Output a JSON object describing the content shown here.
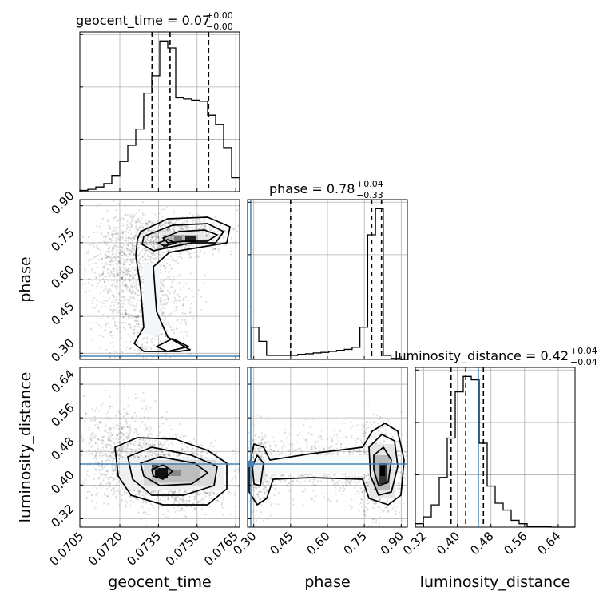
{
  "chart_data": {
    "type": "corner",
    "grid": true,
    "truth_color": "#4682b4",
    "parameters": [
      {
        "name": "geocent_time",
        "label": "geocent_time",
        "title": "geocent_time = 0.07",
        "sup": "+0.00",
        "sub": "−0.00",
        "range": [
          0.07045,
          0.07665
        ],
        "ticks": [
          0.0705,
          0.072,
          0.0735,
          0.075,
          0.0765
        ],
        "tick_labels": [
          "0.0705",
          "0.0720",
          "0.0735",
          "0.0750",
          "0.0765"
        ],
        "quantiles": [
          0.07325,
          0.07395,
          0.07545
        ],
        "truth": null,
        "hist_edges_start": 0.07045,
        "hist_bin": 0.00031,
        "hist_values": [
          1,
          2,
          4,
          7,
          14,
          26,
          40,
          54,
          85,
          100,
          130,
          124,
          81,
          80,
          79,
          78,
          66,
          58,
          38,
          12
        ]
      },
      {
        "name": "phase",
        "label": "phase",
        "title": "phase = 0.78",
        "sup": "+0.04",
        "sub": "−0.33",
        "range": [
          0.275,
          0.925
        ],
        "ticks": [
          0.3,
          0.45,
          0.6,
          0.75,
          0.9
        ],
        "tick_labels": [
          "0.30",
          "0.45",
          "0.60",
          "0.75",
          "0.90"
        ],
        "quantiles": [
          0.45,
          0.78,
          0.82
        ],
        "truth": 0.288,
        "hist_edges_start": 0.289,
        "hist_bin": 0.03165,
        "hist_values": [
          16,
          9,
          2,
          2,
          2,
          2,
          2.5,
          2.8,
          3.2,
          3.5,
          4,
          4.5,
          5,
          6,
          16,
          62,
          75,
          2,
          0.5,
          0
        ]
      },
      {
        "name": "luminosity_distance",
        "label": "luminosity_distance",
        "title": "luminosity_distance = 0.42",
        "sup": "+0.04",
        "sub": "−0.04",
        "range": [
          0.3,
          0.68
        ],
        "ticks": [
          0.32,
          0.4,
          0.48,
          0.56,
          0.64
        ],
        "tick_labels": [
          "0.32",
          "0.40",
          "0.48",
          "0.56",
          "0.64"
        ],
        "quantiles": [
          0.385,
          0.42,
          0.462
        ],
        "truth": 0.45,
        "hist_edges_start": 0.3,
        "hist_bin": 0.019,
        "hist_values": [
          2,
          6,
          13,
          29,
          52,
          79,
          88,
          86,
          49,
          24,
          14,
          10,
          4,
          2,
          0.5,
          0.5,
          0.3,
          0,
          0,
          0
        ]
      }
    ],
    "pairs": [
      {
        "row": 1,
        "col": 0,
        "x": "geocent_time",
        "y": "phase"
      },
      {
        "row": 2,
        "col": 0,
        "x": "geocent_time",
        "y": "luminosity_distance"
      },
      {
        "row": 2,
        "col": 1,
        "x": "phase",
        "y": "luminosity_distance"
      }
    ]
  }
}
